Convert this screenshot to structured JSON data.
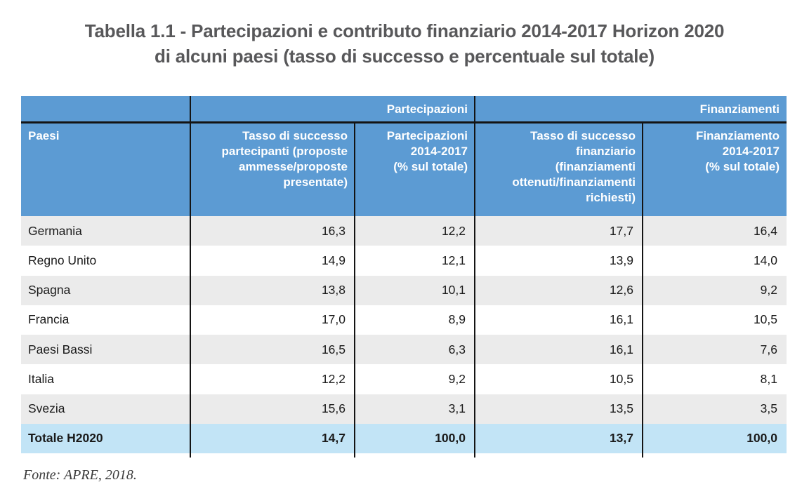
{
  "title": {
    "line1": "Tabella 1.1 - Partecipazioni e contributo finanziario 2014-2017 Horizon 2020",
    "line2": "di alcuni paesi (tasso di successo e percentuale sul totale)"
  },
  "table": {
    "group_headers": {
      "spacer": "",
      "partecipazioni": "Partecipazioni",
      "finanziamenti": "Finanziamenti"
    },
    "column_headers": {
      "paesi": "Paesi",
      "tasso_partecipanti": "Tasso di successo\npartecipanti (proposte\nammesse/proposte\npresentate)",
      "partecipazioni_pct": "Partecipazioni\n2014-2017\n(% sul totale)",
      "tasso_finanziario": "Tasso di successo\nfinanziario\n(finanziamenti\nottenuti/finanziamenti\nrichiesti)",
      "finanziamento_pct": "Finanziamento\n2014-2017\n(% sul totale)"
    },
    "rows": [
      {
        "paese": "Germania",
        "values": [
          "16,3",
          "12,2",
          "17,7",
          "16,4"
        ]
      },
      {
        "paese": "Regno Unito",
        "values": [
          "14,9",
          "12,1",
          "13,9",
          "14,0"
        ]
      },
      {
        "paese": "Spagna",
        "values": [
          "13,8",
          "10,1",
          "12,6",
          "9,2"
        ]
      },
      {
        "paese": "Francia",
        "values": [
          "17,0",
          "8,9",
          "16,1",
          "10,5"
        ]
      },
      {
        "paese": "Paesi Bassi",
        "values": [
          "16,5",
          "6,3",
          "16,1",
          "7,6"
        ]
      },
      {
        "paese": "Italia",
        "values": [
          "12,2",
          "9,2",
          "10,5",
          "8,1"
        ]
      },
      {
        "paese": "Svezia",
        "values": [
          "15,6",
          "3,1",
          "13,5",
          "3,5"
        ]
      }
    ],
    "total_row": {
      "paese": "Totale H2020",
      "values": [
        "14,7",
        "100,0",
        "13,7",
        "100,0"
      ]
    }
  },
  "source_note": "Fonte: APRE, 2018.",
  "colors": {
    "header_blue": "#5C9BD3",
    "total_row_blue": "#C2E4F6",
    "zebra_gray": "#EBEBEB",
    "grid_line": "#141414",
    "title_gray": "#58585A"
  },
  "chart_data": {
    "type": "table",
    "title": "Tabella 1.1 - Partecipazioni e contributo finanziario 2014-2017 Horizon 2020 di alcuni paesi (tasso di successo e percentuale sul totale)",
    "column_groups": [
      "",
      "Partecipazioni",
      "Partecipazioni",
      "Finanziamenti",
      "Finanziamenti"
    ],
    "columns": [
      "Paesi",
      "Tasso di successo partecipanti (proposte ammesse/proposte presentate)",
      "Partecipazioni 2014-2017 (% sul totale)",
      "Tasso di successo finanziario (finanziamenti ottenuti/finanziamenti richiesti)",
      "Finanziamento 2014-2017 (% sul totale)"
    ],
    "rows": [
      [
        "Germania",
        16.3,
        12.2,
        17.7,
        16.4
      ],
      [
        "Regno Unito",
        14.9,
        12.1,
        13.9,
        14.0
      ],
      [
        "Spagna",
        13.8,
        10.1,
        12.6,
        9.2
      ],
      [
        "Francia",
        17.0,
        8.9,
        16.1,
        10.5
      ],
      [
        "Paesi Bassi",
        16.5,
        6.3,
        16.1,
        7.6
      ],
      [
        "Italia",
        12.2,
        9.2,
        10.5,
        8.1
      ],
      [
        "Svezia",
        15.6,
        3.1,
        13.5,
        3.5
      ],
      [
        "Totale H2020",
        14.7,
        100.0,
        13.7,
        100.0
      ]
    ],
    "source": "Fonte: APRE, 2018."
  }
}
